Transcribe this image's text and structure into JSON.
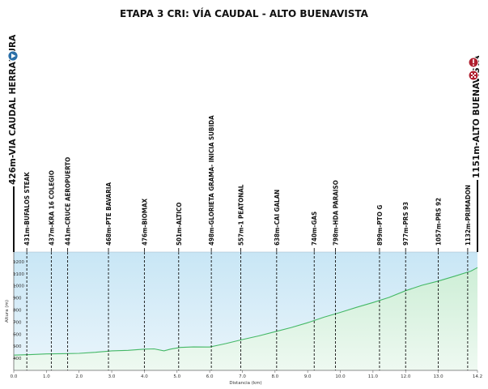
{
  "title": "ETAPA 3 CRI: VÍA CAUDAL - ALTO BUENAVISTA",
  "icons": {
    "start": "start-play-icon",
    "finish_top": "finish-exclamation-icon",
    "finish_bottom": "finish-checkered-flag-icon"
  },
  "colors": {
    "sky_top": "#c8e6f5",
    "sky_bottom": "#eaf5fb",
    "ground_top": "#cdeed6",
    "ground_bottom": "#eef9f1",
    "line": "#44b866",
    "start_icon": "#2a6fa8",
    "finish_icon": "#b02030"
  },
  "chart_data": {
    "type": "area",
    "title": "ETAPA 3 CRI: VÍA CAUDAL - ALTO BUENAVISTA",
    "xlabel": "Distancia  (km)",
    "ylabel": "Altura (m)",
    "xlim": [
      0,
      14.2
    ],
    "ylim": [
      300,
      1280
    ],
    "xticks": [
      "0.0",
      "1.0",
      "2.0",
      "3.0",
      "4.0",
      "5.0",
      "6.0",
      "7.0",
      "8.0",
      "9.0",
      "10.0",
      "11.0",
      "12.0",
      "13.0",
      "14.2"
    ],
    "yticks": [
      "400",
      "500",
      "600",
      "700",
      "800",
      "900",
      "1000",
      "1100",
      "1200"
    ],
    "grid": false,
    "start_label": "426m-VIA CAUDAL HERRADURA",
    "finish_label": "1151m-ALTO BUENAVISTA",
    "waypoints": [
      {
        "km": 0.4,
        "label": "431m-BUFALOS  STEAK"
      },
      {
        "km": 1.15,
        "label": "437m-KRA 16 COLEGIO"
      },
      {
        "km": 1.65,
        "label": "441m-CRUCE  AEROPUERTO"
      },
      {
        "km": 2.9,
        "label": "468m-PTE BAVARIA"
      },
      {
        "km": 4.0,
        "label": "476m-BIOMAX"
      },
      {
        "km": 5.05,
        "label": "501m-ALTICO"
      },
      {
        "km": 6.05,
        "label": "498m-GLORIETA  GRAMA- INICIA  SUBIDA"
      },
      {
        "km": 6.95,
        "label": "557m-1 PEATONAL"
      },
      {
        "km": 8.05,
        "label": "638m-CAI GALAN"
      },
      {
        "km": 9.2,
        "label": "740m-GAS"
      },
      {
        "km": 9.85,
        "label": "798m-HDA PARAISO"
      },
      {
        "km": 11.2,
        "label": "899m-PTO G"
      },
      {
        "km": 12.0,
        "label": "977m-PRS 93"
      },
      {
        "km": 13.0,
        "label": "1057m-PRS 92"
      },
      {
        "km": 13.9,
        "label": "1132m-PRIMADON"
      }
    ],
    "series": [
      {
        "x": [
          0,
          0.5,
          1.0,
          1.5,
          2.0,
          2.5,
          3.0,
          3.5,
          4.0,
          4.3,
          4.6,
          4.8,
          5.1,
          5.5,
          6.0,
          6.2,
          6.5,
          7.0,
          7.5,
          8.0,
          8.5,
          9.0,
          9.5,
          10.0,
          10.5,
          11.0,
          11.5,
          12.0,
          12.5,
          13.0,
          13.5,
          14.0,
          14.2
        ],
        "y": [
          426,
          430,
          436,
          438,
          441,
          450,
          462,
          466,
          476,
          478,
          462,
          476,
          490,
          494,
          493,
          505,
          522,
          555,
          585,
          620,
          655,
          695,
          740,
          780,
          822,
          862,
          905,
          960,
          1005,
          1040,
          1080,
          1122,
          1151
        ]
      }
    ]
  }
}
